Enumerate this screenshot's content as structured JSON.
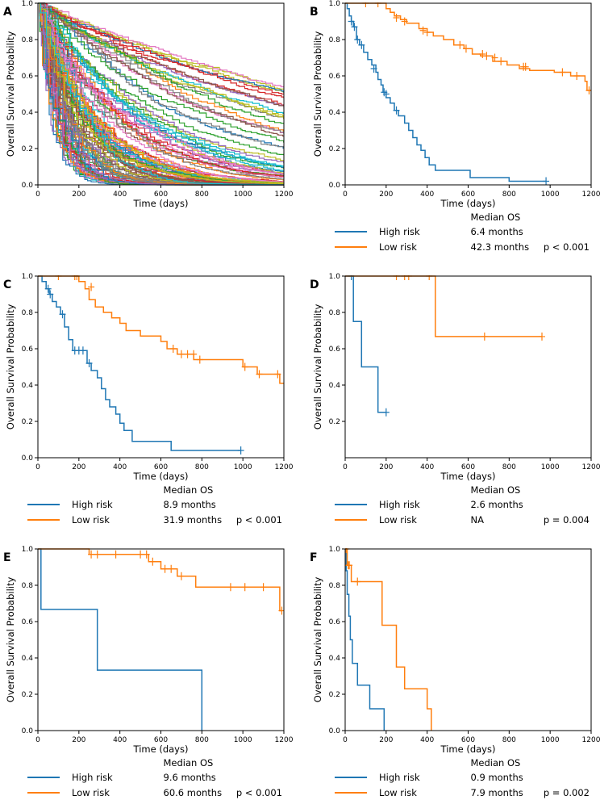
{
  "figure": {
    "colors": {
      "high": "#1f77b4",
      "low": "#ff7f0e"
    },
    "panels": [
      {
        "label": "A",
        "xlabel": "Time (days)",
        "ylabel": "Overall Survival Probability"
      },
      {
        "label": "B",
        "xlabel": "Time (days)",
        "ylabel": "Overall Survival Probability"
      },
      {
        "label": "C",
        "xlabel": "Time (days)",
        "ylabel": "Overall Survival Probability"
      },
      {
        "label": "D",
        "xlabel": "Time (days)",
        "ylabel": "Overall Survival Probability"
      },
      {
        "label": "E",
        "xlabel": "Time (days)",
        "ylabel": "Overall Survival Probability"
      },
      {
        "label": "F",
        "xlabel": "Time (days)",
        "ylabel": "Overall Survival Probability"
      }
    ],
    "legends": {
      "B": {
        "header": "Median OS",
        "high_label": "High risk",
        "high_value": "6.4 months",
        "low_label": "Low risk",
        "low_value": "42.3 months",
        "p": "p < 0.001"
      },
      "C": {
        "header": "Median OS",
        "high_label": "High risk",
        "high_value": "8.9 months",
        "low_label": "Low risk",
        "low_value": "31.9 months",
        "p": "p < 0.001"
      },
      "D": {
        "header": "Median OS",
        "high_label": "High risk",
        "high_value": "2.6 months",
        "low_label": "Low risk",
        "low_value": "NA",
        "p": "p = 0.004"
      },
      "E": {
        "header": "Median OS",
        "high_label": "High risk",
        "high_value": "9.6 months",
        "low_label": "Low risk",
        "low_value": "60.6 months",
        "p": "p < 0.001"
      },
      "F": {
        "header": "Median OS",
        "high_label": "High risk",
        "high_value": "0.9 months",
        "low_label": "Low risk",
        "low_value": "7.9 months",
        "p": "p = 0.002"
      }
    }
  },
  "chart_data": [
    {
      "panel": "A",
      "type": "line",
      "description_series": "many individual survival curves (approx. 120), one per sample",
      "xlabel": "Time (days)",
      "ylabel": "Overall Survival Probability",
      "xlim": [
        0,
        1200
      ],
      "ylim": [
        0,
        1.0
      ],
      "xticks": [
        0,
        200,
        400,
        600,
        800,
        1000,
        1200
      ],
      "yticks": [
        0.0,
        0.2,
        0.4,
        0.6,
        0.8,
        1.0
      ],
      "series_count": 120,
      "final_values_range": [
        0.0,
        0.53
      ]
    },
    {
      "panel": "B",
      "type": "line",
      "step": true,
      "xlabel": "Time (days)",
      "ylabel": "Overall Survival Probability",
      "xlim": [
        0,
        1200
      ],
      "ylim": [
        0,
        1.0
      ],
      "xticks": [
        0,
        200,
        400,
        600,
        800,
        1000,
        1200
      ],
      "yticks": [
        0.0,
        0.2,
        0.4,
        0.6,
        0.8,
        1.0
      ],
      "series": [
        {
          "name": "High risk",
          "steps": [
            [
              0,
              1.0
            ],
            [
              10,
              0.97
            ],
            [
              20,
              0.93
            ],
            [
              30,
              0.9
            ],
            [
              40,
              0.87
            ],
            [
              55,
              0.8
            ],
            [
              70,
              0.77
            ],
            [
              90,
              0.73
            ],
            [
              110,
              0.69
            ],
            [
              130,
              0.66
            ],
            [
              150,
              0.62
            ],
            [
              160,
              0.58
            ],
            [
              175,
              0.55
            ],
            [
              185,
              0.51
            ],
            [
              200,
              0.48
            ],
            [
              220,
              0.45
            ],
            [
              240,
              0.41
            ],
            [
              260,
              0.38
            ],
            [
              290,
              0.34
            ],
            [
              310,
              0.3
            ],
            [
              330,
              0.26
            ],
            [
              350,
              0.22
            ],
            [
              370,
              0.19
            ],
            [
              390,
              0.15
            ],
            [
              410,
              0.11
            ],
            [
              440,
              0.08
            ],
            [
              610,
              0.04
            ],
            [
              800,
              0.02
            ]
          ],
          "end": 980,
          "censors": [
            [
              30,
              0.9
            ],
            [
              45,
              0.87
            ],
            [
              60,
              0.8
            ],
            [
              80,
              0.77
            ],
            [
              140,
              0.64
            ],
            [
              190,
              0.51
            ],
            [
              200,
              0.5
            ],
            [
              250,
              0.41
            ],
            [
              980,
              0.02
            ]
          ]
        },
        {
          "name": "Low risk",
          "steps": [
            [
              0,
              1.0
            ],
            [
              200,
              0.97
            ],
            [
              220,
              0.95
            ],
            [
              240,
              0.93
            ],
            [
              270,
              0.91
            ],
            [
              300,
              0.89
            ],
            [
              360,
              0.86
            ],
            [
              400,
              0.84
            ],
            [
              430,
              0.82
            ],
            [
              480,
              0.8
            ],
            [
              530,
              0.77
            ],
            [
              580,
              0.75
            ],
            [
              620,
              0.72
            ],
            [
              660,
              0.71
            ],
            [
              720,
              0.68
            ],
            [
              790,
              0.66
            ],
            [
              850,
              0.64
            ],
            [
              900,
              0.63
            ],
            [
              1020,
              0.62
            ],
            [
              1100,
              0.6
            ],
            [
              1170,
              0.57
            ],
            [
              1180,
              0.52
            ]
          ],
          "end": 1200,
          "censors": [
            [
              100,
              1.0
            ],
            [
              160,
              1.0
            ],
            [
              250,
              0.92
            ],
            [
              290,
              0.9
            ],
            [
              380,
              0.85
            ],
            [
              400,
              0.84
            ],
            [
              560,
              0.77
            ],
            [
              590,
              0.75
            ],
            [
              670,
              0.72
            ],
            [
              690,
              0.71
            ],
            [
              730,
              0.7
            ],
            [
              760,
              0.68
            ],
            [
              870,
              0.65
            ],
            [
              880,
              0.65
            ],
            [
              1060,
              0.62
            ],
            [
              1130,
              0.6
            ],
            [
              1190,
              0.52
            ]
          ]
        }
      ]
    },
    {
      "panel": "C",
      "type": "line",
      "step": true,
      "xlabel": "Time (days)",
      "ylabel": "Overall Survival Probability",
      "xlim": [
        0,
        1200
      ],
      "ylim": [
        0,
        1.0
      ],
      "xticks": [
        0,
        200,
        400,
        600,
        800,
        1000,
        1200
      ],
      "yticks": [
        0.0,
        0.2,
        0.4,
        0.6,
        0.8,
        1.0
      ],
      "series": [
        {
          "name": "High risk",
          "steps": [
            [
              0,
              1.0
            ],
            [
              20,
              0.97
            ],
            [
              40,
              0.93
            ],
            [
              55,
              0.9
            ],
            [
              70,
              0.86
            ],
            [
              90,
              0.83
            ],
            [
              110,
              0.79
            ],
            [
              130,
              0.72
            ],
            [
              150,
              0.65
            ],
            [
              170,
              0.59
            ],
            [
              240,
              0.52
            ],
            [
              260,
              0.48
            ],
            [
              290,
              0.44
            ],
            [
              310,
              0.38
            ],
            [
              330,
              0.32
            ],
            [
              350,
              0.28
            ],
            [
              380,
              0.24
            ],
            [
              400,
              0.19
            ],
            [
              420,
              0.15
            ],
            [
              460,
              0.09
            ],
            [
              650,
              0.04
            ]
          ],
          "end": 990,
          "censors": [
            [
              50,
              0.93
            ],
            [
              60,
              0.9
            ],
            [
              120,
              0.79
            ],
            [
              180,
              0.59
            ],
            [
              200,
              0.59
            ],
            [
              220,
              0.59
            ],
            [
              250,
              0.52
            ],
            [
              990,
              0.04
            ]
          ]
        },
        {
          "name": "Low risk",
          "steps": [
            [
              0,
              1.0
            ],
            [
              200,
              0.97
            ],
            [
              230,
              0.93
            ],
            [
              250,
              0.87
            ],
            [
              280,
              0.83
            ],
            [
              320,
              0.8
            ],
            [
              360,
              0.77
            ],
            [
              400,
              0.74
            ],
            [
              430,
              0.7
            ],
            [
              500,
              0.67
            ],
            [
              600,
              0.64
            ],
            [
              630,
              0.6
            ],
            [
              680,
              0.57
            ],
            [
              760,
              0.54
            ],
            [
              1000,
              0.5
            ],
            [
              1070,
              0.46
            ],
            [
              1180,
              0.41
            ]
          ],
          "end": 1200,
          "censors": [
            [
              100,
              1.0
            ],
            [
              180,
              1.0
            ],
            [
              190,
              1.0
            ],
            [
              260,
              0.94
            ],
            [
              660,
              0.6
            ],
            [
              700,
              0.57
            ],
            [
              730,
              0.57
            ],
            [
              760,
              0.57
            ],
            [
              790,
              0.54
            ],
            [
              1010,
              0.5
            ],
            [
              1080,
              0.46
            ],
            [
              1170,
              0.46
            ]
          ]
        }
      ]
    },
    {
      "panel": "D",
      "type": "line",
      "step": true,
      "xlabel": "Time (days)",
      "ylabel": "Overall Survival Probability",
      "xlim": [
        0,
        1200
      ],
      "ylim": [
        0,
        1.0
      ],
      "xticks": [
        0,
        200,
        400,
        600,
        800,
        1000,
        1200
      ],
      "yticks": [
        0.2,
        0.4,
        0.6,
        0.8,
        1.0
      ],
      "series": [
        {
          "name": "High risk",
          "steps": [
            [
              0,
              1.0
            ],
            [
              40,
              0.75
            ],
            [
              80,
              0.5
            ],
            [
              160,
              0.25
            ]
          ],
          "end": 200,
          "censors": [
            [
              30,
              1.0
            ],
            [
              200,
              0.25
            ]
          ]
        },
        {
          "name": "Low risk",
          "steps": [
            [
              0,
              1.0
            ],
            [
              440,
              0.667
            ]
          ],
          "end": 960,
          "censors": [
            [
              250,
              1.0
            ],
            [
              290,
              1.0
            ],
            [
              310,
              1.0
            ],
            [
              410,
              1.0
            ],
            [
              680,
              0.667
            ],
            [
              960,
              0.667
            ]
          ]
        }
      ]
    },
    {
      "panel": "E",
      "type": "line",
      "step": true,
      "xlabel": "Time (days)",
      "ylabel": "Overall Survival Probability",
      "xlim": [
        0,
        1200
      ],
      "ylim": [
        0,
        1.0
      ],
      "xticks": [
        0,
        200,
        400,
        600,
        800,
        1000,
        1200
      ],
      "yticks": [
        0.0,
        0.2,
        0.4,
        0.6,
        0.8,
        1.0
      ],
      "series": [
        {
          "name": "High risk",
          "steps": [
            [
              0,
              1.0
            ],
            [
              15,
              0.667
            ],
            [
              290,
              0.333
            ],
            [
              800,
              0.0
            ]
          ],
          "end": 800,
          "censors": []
        },
        {
          "name": "Low risk",
          "steps": [
            [
              0,
              1.0
            ],
            [
              250,
              0.97
            ],
            [
              540,
              0.93
            ],
            [
              600,
              0.89
            ],
            [
              680,
              0.85
            ],
            [
              770,
              0.79
            ],
            [
              1180,
              0.66
            ]
          ],
          "end": 1190,
          "censors": [
            [
              260,
              0.97
            ],
            [
              290,
              0.97
            ],
            [
              380,
              0.97
            ],
            [
              500,
              0.97
            ],
            [
              530,
              0.97
            ],
            [
              560,
              0.93
            ],
            [
              620,
              0.89
            ],
            [
              650,
              0.89
            ],
            [
              700,
              0.85
            ],
            [
              940,
              0.79
            ],
            [
              1010,
              0.79
            ],
            [
              1100,
              0.79
            ],
            [
              1190,
              0.66
            ]
          ]
        }
      ]
    },
    {
      "panel": "F",
      "type": "line",
      "step": true,
      "xlabel": "Time (days)",
      "ylabel": "Overall Survival Probability",
      "xlim": [
        0,
        1200
      ],
      "ylim": [
        0,
        1.0
      ],
      "xticks": [
        0,
        200,
        400,
        600,
        800,
        1000,
        1200
      ],
      "yticks": [
        0.0,
        0.2,
        0.4,
        0.6,
        0.8,
        1.0
      ],
      "series": [
        {
          "name": "High risk",
          "steps": [
            [
              0,
              1.0
            ],
            [
              5,
              0.88
            ],
            [
              10,
              0.75
            ],
            [
              18,
              0.63
            ],
            [
              25,
              0.5
            ],
            [
              35,
              0.37
            ],
            [
              60,
              0.25
            ],
            [
              120,
              0.12
            ],
            [
              190,
              0.0
            ]
          ],
          "end": 190,
          "censors": []
        },
        {
          "name": "Low risk",
          "steps": [
            [
              0,
              1.0
            ],
            [
              10,
              0.91
            ],
            [
              30,
              0.82
            ],
            [
              180,
              0.58
            ],
            [
              250,
              0.35
            ],
            [
              290,
              0.23
            ],
            [
              400,
              0.12
            ],
            [
              420,
              0.0
            ]
          ],
          "end": 420,
          "censors": [
            [
              5,
              1.0
            ],
            [
              15,
              0.91
            ],
            [
              20,
              0.91
            ],
            [
              60,
              0.82
            ]
          ]
        }
      ]
    }
  ]
}
